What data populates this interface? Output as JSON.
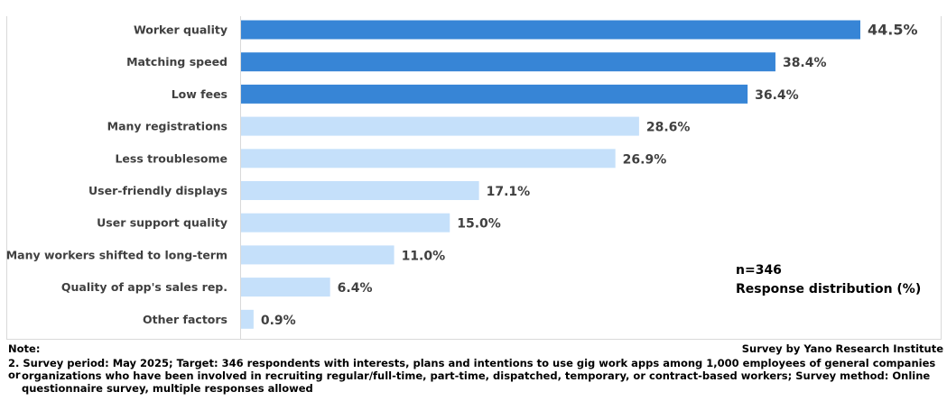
{
  "chart_data": {
    "type": "bar",
    "orientation": "horizontal",
    "categories": [
      "Worker quality",
      "Matching speed",
      "Low fees",
      "Many registrations",
      "Less troublesome",
      "User-friendly displays",
      "User support quality",
      "Many workers shifted to long-term",
      "Quality of app's sales rep.",
      "Other factors"
    ],
    "values": [
      44.5,
      38.4,
      36.4,
      28.6,
      26.9,
      17.1,
      15.0,
      11.0,
      6.4,
      0.9
    ],
    "value_labels": [
      "44.5%",
      "38.4%",
      "36.4%",
      "28.6%",
      "26.9%",
      "17.1%",
      "15.0%",
      "11.0%",
      "6.4%",
      "0.9%"
    ],
    "highlight_count": 3,
    "colors": {
      "highlight": "#3785d6",
      "normal": "#c5e0fa"
    },
    "xlim": [
      0,
      44.5
    ],
    "grid": false,
    "annotation": {
      "n": "n=346",
      "unit": "Response distribution (%)"
    }
  },
  "notes": {
    "label": "Note:",
    "source": "Survey by Yano Research Institute",
    "line1": "2.  Survey period: May 2025; Target: 346 respondents with interests, plans and intentions to use gig work apps among 1,000 employees of general companies or",
    "line2": "organizations who have been involved in recruiting regular/full-time, part-time, dispatched, temporary, or contract-based workers; Survey method: Online",
    "line3": "questionnaire survey, multiple responses allowed"
  }
}
